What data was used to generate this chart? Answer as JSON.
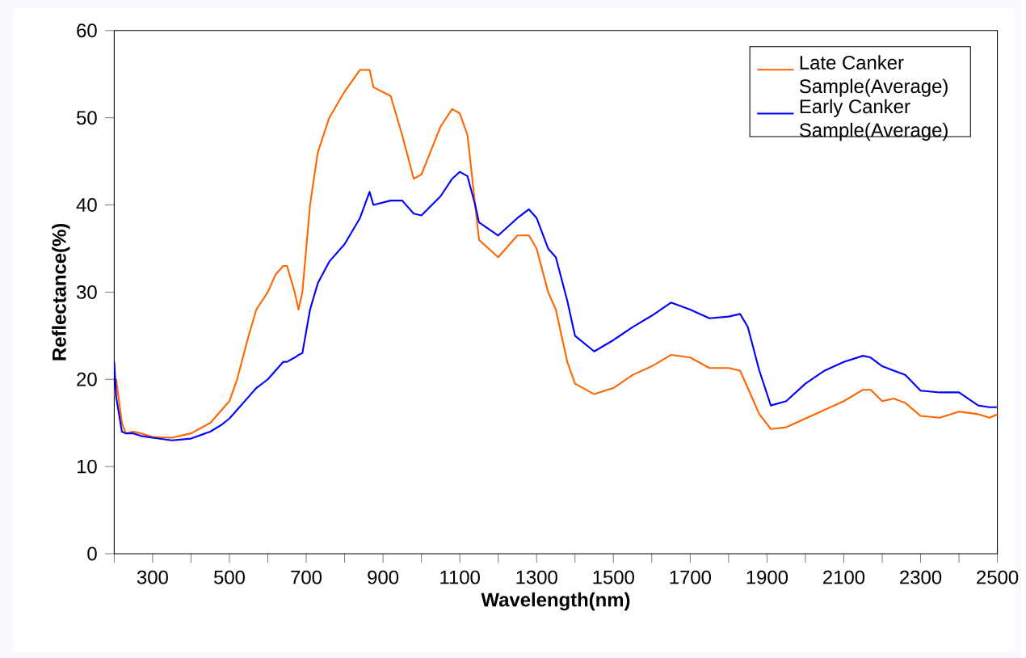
{
  "chart_data": {
    "type": "line",
    "xlabel": "Wavelength(nm)",
    "ylabel": "Reflectance(%)",
    "xlim": [
      200,
      2500
    ],
    "ylim": [
      0,
      60
    ],
    "xticks": [
      {
        "value": 200,
        "label": null
      },
      300,
      {
        "value": 400,
        "label": null
      },
      500,
      {
        "value": 600,
        "label": null
      },
      700,
      {
        "value": 800,
        "label": null
      },
      900,
      {
        "value": 1000,
        "label": null
      },
      1100,
      {
        "value": 1200,
        "label": null
      },
      1300,
      {
        "value": 1400,
        "label": null
      },
      1500,
      {
        "value": 1600,
        "label": null
      },
      1700,
      {
        "value": 1800,
        "label": null
      },
      1900,
      {
        "value": 2000,
        "label": null
      },
      2100,
      {
        "value": 2200,
        "label": null
      },
      2300,
      {
        "value": 2400,
        "label": null
      },
      2500
    ],
    "yticks": [
      0,
      10,
      20,
      30,
      40,
      50,
      60
    ],
    "grid": false,
    "legend": "top right",
    "marker": "none",
    "line_style": "solid",
    "x": [
      200,
      205,
      220,
      230,
      250,
      270,
      300,
      350,
      400,
      450,
      480,
      500,
      520,
      550,
      570,
      600,
      620,
      640,
      650,
      670,
      680,
      690,
      710,
      730,
      760,
      800,
      840,
      865,
      875,
      920,
      950,
      980,
      1000,
      1050,
      1080,
      1100,
      1120,
      1140,
      1150,
      1200,
      1250,
      1280,
      1300,
      1330,
      1350,
      1380,
      1400,
      1450,
      1500,
      1550,
      1600,
      1650,
      1700,
      1750,
      1800,
      1830,
      1850,
      1880,
      1910,
      1950,
      2000,
      2050,
      2100,
      2150,
      2170,
      2200,
      2230,
      2260,
      2300,
      2350,
      2400,
      2450,
      2480,
      2500
    ],
    "series": [
      {
        "name": "Late Canker Sample(Average)",
        "color": "#ff6600",
        "values": [
          18,
          20,
          15,
          13.8,
          14,
          13.8,
          13.4,
          13.3,
          13.8,
          15,
          16.5,
          17.5,
          20,
          25,
          28,
          30,
          32,
          33,
          33,
          30,
          28,
          30,
          40,
          46,
          50,
          53,
          55.5,
          55.5,
          53.5,
          52.5,
          48,
          43,
          43.5,
          49,
          51,
          50.5,
          48,
          40,
          36,
          34,
          36.5,
          36.5,
          35,
          30,
          28,
          22,
          19.5,
          18.3,
          19,
          20.5,
          21.5,
          22.8,
          22.5,
          21.3,
          21.3,
          21,
          19,
          16,
          14.3,
          14.5,
          15.5,
          16.5,
          17.5,
          18.8,
          18.8,
          17.5,
          17.8,
          17.3,
          15.8,
          15.6,
          16.3,
          16,
          15.6,
          16
        ]
      },
      {
        "name": "Early Canker Sample(Average)",
        "color": "#0000ff",
        "values": [
          22,
          18,
          14,
          13.8,
          13.8,
          13.5,
          13.3,
          13,
          13.2,
          14,
          14.8,
          15.5,
          16.5,
          18,
          19,
          20,
          21,
          22,
          22,
          22.5,
          22.8,
          23,
          28,
          31,
          33.5,
          35.5,
          38.5,
          41.5,
          40,
          40.5,
          40.5,
          39,
          38.8,
          41,
          43,
          43.8,
          43.3,
          40,
          38,
          36.5,
          38.5,
          39.5,
          38.5,
          35,
          34,
          29,
          25,
          23.2,
          24.5,
          26,
          27.3,
          28.8,
          28,
          27,
          27.2,
          27.5,
          26,
          21,
          17,
          17.5,
          19.5,
          21,
          22,
          22.7,
          22.5,
          21.5,
          21,
          20.5,
          18.7,
          18.5,
          18.5,
          17,
          16.8,
          16.8
        ]
      }
    ]
  }
}
